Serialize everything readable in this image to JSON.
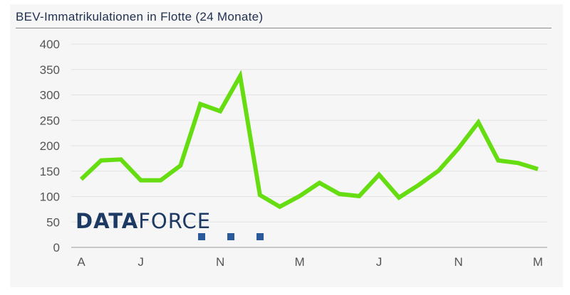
{
  "chart_data": {
    "type": "line",
    "title": "BEV-Immatrikulationen in Flotte (24 Monate)",
    "xlabel": "",
    "ylabel": "",
    "ylim": [
      0,
      400
    ],
    "yticks": [
      "0",
      "50",
      "100",
      "150",
      "200",
      "250",
      "300",
      "350",
      "400"
    ],
    "xtick_labels": [
      {
        "label": "A",
        "index": 0
      },
      {
        "label": "J",
        "index": 3
      },
      {
        "label": "N",
        "index": 7
      },
      {
        "label": "M",
        "index": 11
      },
      {
        "label": "J",
        "index": 15
      },
      {
        "label": "N",
        "index": 19
      },
      {
        "label": "M",
        "index": 23
      }
    ],
    "grid": true,
    "series": [
      {
        "values": [
          134,
          171,
          173,
          132,
          132,
          161,
          282,
          268,
          337,
          103,
          80,
          101,
          127,
          105,
          101,
          143,
          98,
          123,
          151,
          195,
          246,
          171,
          166,
          154
        ],
        "color": "#66dd11"
      }
    ]
  },
  "logo": {
    "strong": "DATA",
    "light": "FORCE",
    "color": "#1c3a63",
    "square_color": "#2a5a9a"
  }
}
